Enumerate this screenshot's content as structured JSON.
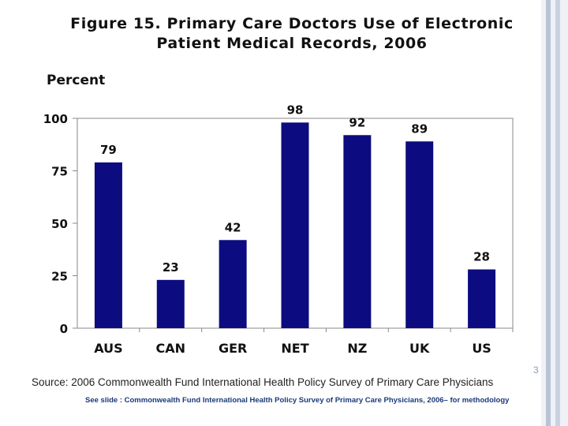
{
  "title_line1": "Figure 15. Primary Care Doctors Use of Electronic",
  "title_line2": "Patient Medical Records, 2006",
  "source": "Source: 2006 Commonwealth Fund International Health Policy Survey of Primary Care Physicians",
  "note": "See slide : Commonwealth Fund International Health Policy Survey of Primary Care Physicians, 2006– for methodology",
  "slide_number": "3",
  "colors": {
    "bar": "#0c0c80",
    "axis": "#888888"
  },
  "chart_data": {
    "type": "bar",
    "title": "Figure 15. Primary Care Doctors Use of Electronic Patient Medical Records, 2006",
    "xlabel": "",
    "ylabel": "Percent",
    "categories": [
      "AUS",
      "CAN",
      "GER",
      "NET",
      "NZ",
      "UK",
      "US"
    ],
    "values": [
      79,
      23,
      42,
      98,
      92,
      89,
      28
    ],
    "ylim": [
      0,
      100
    ],
    "yticks": [
      0,
      25,
      50,
      75,
      100
    ],
    "grid": false,
    "legend": "none"
  }
}
